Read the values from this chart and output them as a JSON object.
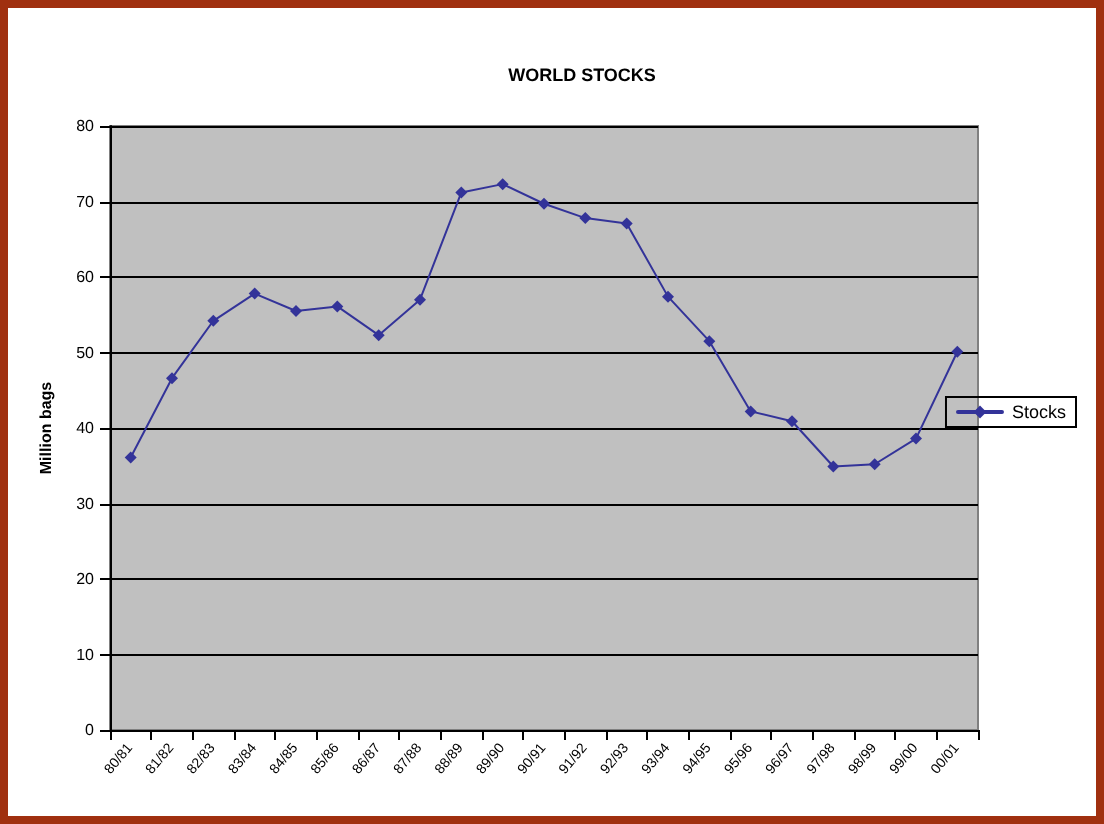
{
  "chart_data": {
    "type": "line",
    "title": "WORLD STOCKS",
    "ylabel": "Million bags",
    "categories": [
      "80/81",
      "81/82",
      "82/83",
      "83/84",
      "84/85",
      "85/86",
      "86/87",
      "87/88",
      "88/89",
      "89/90",
      "90/91",
      "91/92",
      "92/93",
      "93/94",
      "94/95",
      "95/96",
      "96/97",
      "97/98",
      "98/99",
      "99/00",
      "00/01"
    ],
    "series": [
      {
        "name": "Stocks",
        "color": "#333399",
        "values": [
          36.1,
          46.6,
          54.2,
          57.8,
          55.5,
          56.1,
          52.3,
          57.0,
          71.2,
          72.3,
          69.7,
          67.8,
          67.1,
          57.4,
          51.5,
          42.2,
          40.9,
          34.9,
          35.2,
          38.6,
          50.1
        ]
      }
    ],
    "ylim": [
      0,
      80
    ],
    "yticks": [
      0,
      10,
      20,
      30,
      40,
      50,
      60,
      70,
      80
    ],
    "grid": "y",
    "legend": "right",
    "marker": "diamond",
    "line_style": "solid"
  }
}
